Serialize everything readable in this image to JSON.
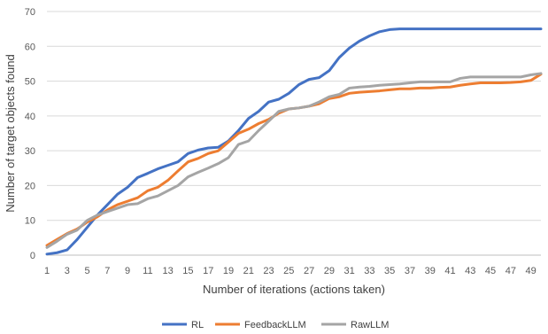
{
  "chart_data": {
    "type": "line",
    "xlabel": "Number of iterations (actions taken)",
    "ylabel": "Number of target objects found",
    "ylim": [
      0,
      70
    ],
    "yticks": [
      "0",
      "10",
      "20",
      "30",
      "40",
      "50",
      "60",
      "70"
    ],
    "xlim": [
      1,
      50
    ],
    "xticks": [
      "1",
      "3",
      "5",
      "7",
      "9",
      "11",
      "13",
      "15",
      "17",
      "19",
      "21",
      "23",
      "25",
      "27",
      "29",
      "31",
      "33",
      "35",
      "37",
      "39",
      "41",
      "43",
      "45",
      "47",
      "49"
    ],
    "grid": "horizontal",
    "legend_position": "bottom",
    "x": [
      1,
      2,
      3,
      4,
      5,
      6,
      7,
      8,
      9,
      10,
      11,
      12,
      13,
      14,
      15,
      16,
      17,
      18,
      19,
      20,
      21,
      22,
      23,
      24,
      25,
      26,
      27,
      28,
      29,
      30,
      31,
      32,
      33,
      34,
      35,
      36,
      37,
      38,
      39,
      40,
      41,
      42,
      43,
      44,
      45,
      46,
      47,
      48,
      49,
      50
    ],
    "series": [
      {
        "name": "RL",
        "color": "#4472C4",
        "values": [
          0.3,
          0.7,
          1.5,
          4.5,
          8,
          11.5,
          14.5,
          17.5,
          19.5,
          22.3,
          23.5,
          24.8,
          25.8,
          26.8,
          29.2,
          30.2,
          30.8,
          31,
          32.8,
          35.8,
          39.3,
          41.3,
          44,
          44.8,
          46.5,
          49,
          50.5,
          51,
          53,
          56.8,
          59.5,
          61.5,
          63,
          64.2,
          64.8,
          65,
          65,
          65,
          65,
          65,
          65,
          65,
          65,
          65,
          65,
          65,
          65,
          65,
          65,
          65
        ]
      },
      {
        "name": "FeedbackLLM",
        "color": "#ED7D31",
        "values": [
          2.8,
          4.5,
          6.2,
          7.5,
          9.5,
          11,
          13,
          14.5,
          15.5,
          16.5,
          18.5,
          19.5,
          21.5,
          24.2,
          26.8,
          27.8,
          29.2,
          30,
          32.5,
          35,
          36.2,
          37.8,
          39,
          40.8,
          42,
          42.3,
          42.8,
          43.5,
          45,
          45.5,
          46.5,
          46.8,
          47,
          47.2,
          47.5,
          47.8,
          47.8,
          48,
          48,
          48.2,
          48.3,
          48.8,
          49.2,
          49.5,
          49.5,
          49.5,
          49.6,
          49.8,
          50.2,
          52
        ]
      },
      {
        "name": "RawLLM",
        "color": "#A5A5A5",
        "values": [
          2.2,
          4,
          6,
          7.2,
          10,
          11.5,
          12.5,
          13.5,
          14.5,
          14.8,
          16.2,
          17,
          18.5,
          20,
          22.5,
          23.8,
          25,
          26.3,
          28,
          31.8,
          32.8,
          35.8,
          38.5,
          41.3,
          42,
          42.3,
          42.8,
          44,
          45.5,
          46.2,
          48,
          48.3,
          48.5,
          48.8,
          49,
          49.2,
          49.5,
          49.8,
          49.8,
          49.8,
          49.8,
          50.8,
          51.2,
          51.2,
          51.2,
          51.2,
          51.2,
          51.2,
          51.8,
          52.2
        ]
      }
    ]
  }
}
